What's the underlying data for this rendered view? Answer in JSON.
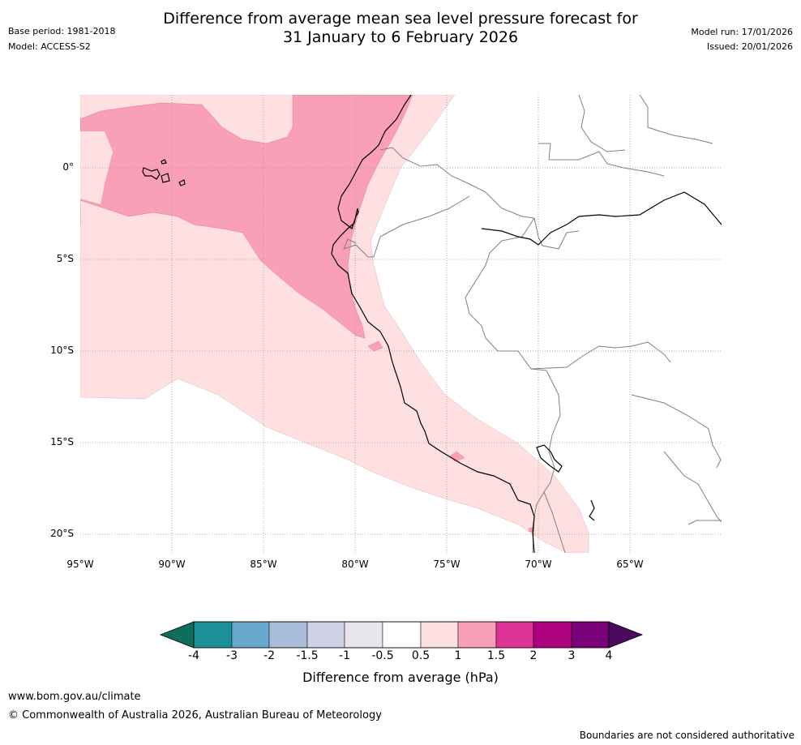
{
  "header": {
    "base_period": "Base period: 1981-2018",
    "model": "Model: ACCESS-S2",
    "title_line1": "Difference from average mean sea level pressure forecast for",
    "title_line2": "31 January to 6 February 2026",
    "model_run": "Model run: 17/01/2026",
    "issued": "Issued: 20/01/2026"
  },
  "map": {
    "lat_labels": [
      "0°",
      "5°S",
      "10°S",
      "15°S",
      "20°S"
    ],
    "lon_labels": [
      "95°W",
      "90°W",
      "85°W",
      "80°W",
      "75°W",
      "70°W",
      "65°W"
    ],
    "colors": {
      "anom_0_5_to_1": "#fde0df",
      "anom_1_to_1_5": "#f99fb8",
      "coastline": "#000000",
      "border": "#808080",
      "grid": "#999999"
    }
  },
  "colorbar": {
    "ticks": [
      "-4",
      "-3",
      "-2",
      "-1.5",
      "-1",
      "-0.5",
      "0.5",
      "1",
      "1.5",
      "2",
      "3",
      "4"
    ],
    "colors": [
      "#0e6e5e",
      "#1c9199",
      "#69a9d0",
      "#a9bcda",
      "#cfd1e6",
      "#e8e6ec",
      "#ffffff",
      "#fde0df",
      "#f99fb8",
      "#de3497",
      "#ad017e",
      "#7a0177",
      "#4a0a5e"
    ],
    "title": "Difference from average (hPa)"
  },
  "footer": {
    "url": "www.bom.gov.au/climate",
    "copyright": "© Commonwealth of Australia 2026, Australian Bureau of Meteorology",
    "disclaimer": "Boundaries are not considered authoritative"
  }
}
